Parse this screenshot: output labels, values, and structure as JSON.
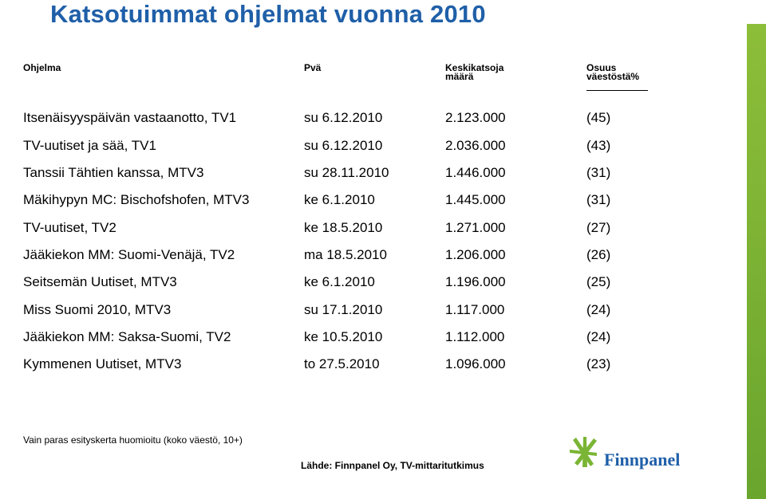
{
  "title": "Katsotuimmat ohjelmat vuonna 2010",
  "headers": {
    "program": "Ohjelma",
    "day": "Pvä",
    "viewers_line1": "Keskikatsoja",
    "viewers_line2": "määrä",
    "share_line1": "Osuus",
    "share_line2": "väestöstä%"
  },
  "rows": [
    {
      "program": "Itsenäisyyspäivän vastaanotto, TV1",
      "day": "su 6.12.2010",
      "viewers": "2.123.000",
      "share": "(45)"
    },
    {
      "program": "TV-uutiset ja sää, TV1",
      "day": "su 6.12.2010",
      "viewers": "2.036.000",
      "share": "(43)"
    },
    {
      "program": "Tanssii Tähtien kanssa, MTV3",
      "day": "su 28.11.2010",
      "viewers": "1.446.000",
      "share": "(31)"
    },
    {
      "program": "Mäkihypyn MC: Bischofshofen, MTV3",
      "day": "ke 6.1.2010",
      "viewers": "1.445.000",
      "share": "(31)"
    },
    {
      "program": "TV-uutiset, TV2",
      "day": "ke 18.5.2010",
      "viewers": "1.271.000",
      "share": "(27)"
    },
    {
      "program": "Jääkiekon MM: Suomi-Venäjä, TV2",
      "day": "ma 18.5.2010",
      "viewers": "1.206.000",
      "share": "(26)"
    },
    {
      "program": "Seitsemän Uutiset, MTV3",
      "day": "ke 6.1.2010",
      "viewers": "1.196.000",
      "share": "(25)"
    },
    {
      "program": "Miss Suomi 2010, MTV3",
      "day": "su 17.1.2010",
      "viewers": "1.117.000",
      "share": "(24)"
    },
    {
      "program": "Jääkiekon MM: Saksa-Suomi, TV2",
      "day": "ke 10.5.2010",
      "viewers": "1.112.000",
      "share": "(24)"
    },
    {
      "program": "Kymmenen Uutiset, MTV3",
      "day": "to 27.5.2010",
      "viewers": "1.096.000",
      "share": "(23)"
    }
  ],
  "footnote": "Vain paras esityskerta huomioitu (koko väestö, 10+)",
  "source": "Lähde: Finnpanel Oy, TV-mittaritutkimus",
  "logo_text": "Finnpanel",
  "colors": {
    "title": "#1f5fa8",
    "accent_green": "#7ab535",
    "logo_blue": "#1f5fa8"
  }
}
